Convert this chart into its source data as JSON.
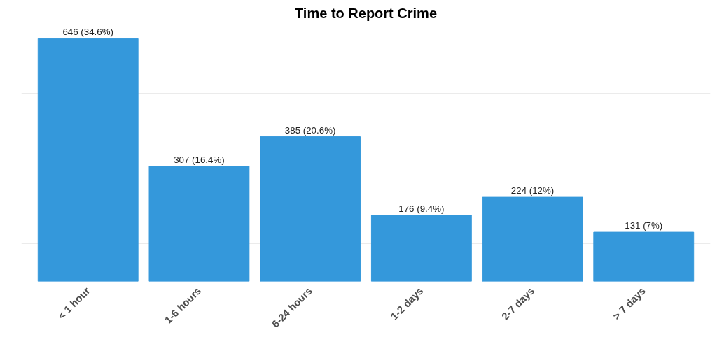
{
  "chart_data": {
    "type": "bar",
    "title": "Time to Report Crime",
    "categories": [
      "< 1 hour",
      "1-6 hours",
      "6-24 hours",
      "1-2 days",
      "2-7 days",
      "> 7 days"
    ],
    "values": [
      646,
      307,
      385,
      176,
      224,
      131
    ],
    "value_labels": [
      "646 (34.6%)",
      "307 (16.4%)",
      "385 (20.6%)",
      "176 (9.4%)",
      "224 (12%)",
      "131 (7%)"
    ],
    "color": "#3498db",
    "yticks": [
      {
        "value": 100,
        "label": null
      },
      {
        "value": 300,
        "label": null
      },
      {
        "value": 500,
        "label": null
      }
    ],
    "grid": "y",
    "tick_labels": "x"
  }
}
